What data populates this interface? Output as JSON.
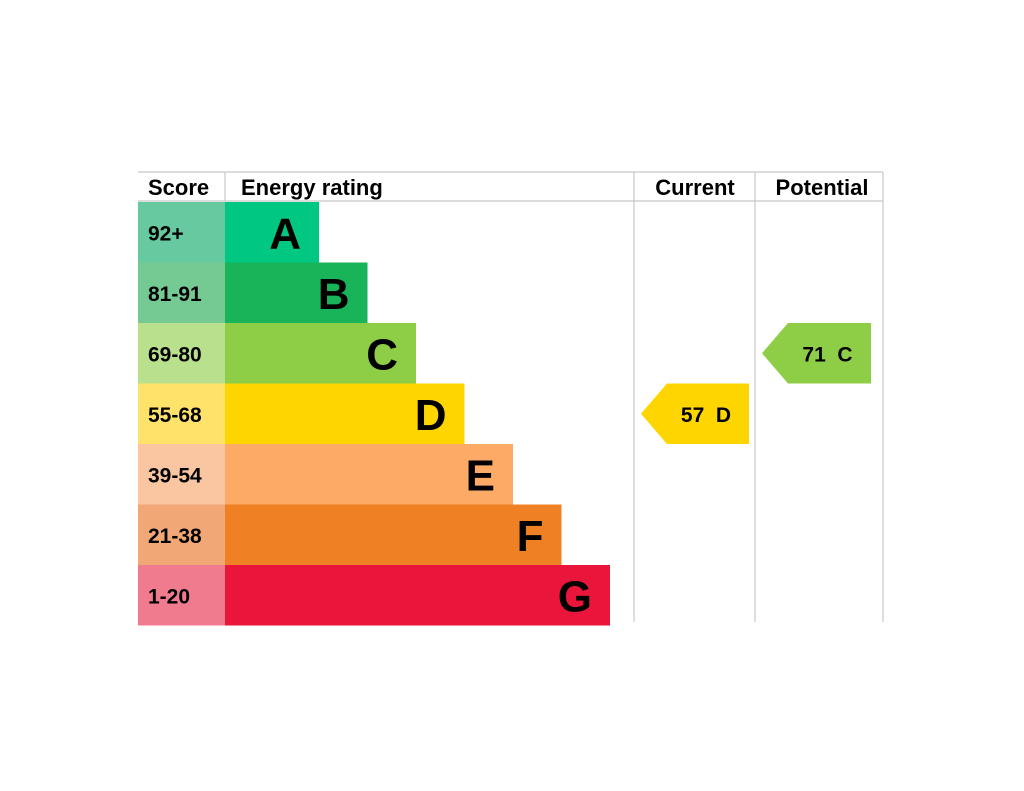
{
  "chart_data": {
    "type": "bar",
    "headers": {
      "score": "Score",
      "rating": "Energy rating",
      "current": "Current",
      "potential": "Potential"
    },
    "bands": [
      {
        "letter": "A",
        "score": "92+",
        "bar_color": "#00c781",
        "score_color": "#66c9a0"
      },
      {
        "letter": "B",
        "score": "81-91",
        "bar_color": "#19b459",
        "score_color": "#75c993"
      },
      {
        "letter": "C",
        "score": "69-80",
        "bar_color": "#8dce46",
        "score_color": "#b8e08d"
      },
      {
        "letter": "D",
        "score": "55-68",
        "bar_color": "#ffd500",
        "score_color": "#ffe26a"
      },
      {
        "letter": "E",
        "score": "39-54",
        "bar_color": "#fcaa65",
        "score_color": "#f9c6a1"
      },
      {
        "letter": "F",
        "score": "21-38",
        "bar_color": "#ef8023",
        "score_color": "#f2a876"
      },
      {
        "letter": "G",
        "score": "1-20",
        "bar_color": "#e9153b",
        "score_color": "#f07a8e"
      }
    ],
    "current": {
      "value": 57,
      "letter": "D",
      "label": "57  D",
      "color": "#ffd500"
    },
    "potential": {
      "value": 71,
      "letter": "C",
      "label": "71  C",
      "color": "#8dce46"
    }
  }
}
